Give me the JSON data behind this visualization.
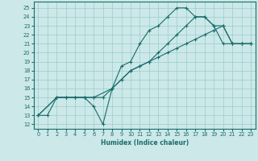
{
  "xlabel": "Humidex (Indice chaleur)",
  "bg_color": "#cce8e8",
  "grid_color": "#99cccc",
  "line_color": "#1a6b6b",
  "xlim": [
    -0.5,
    23.5
  ],
  "ylim": [
    11.5,
    25.7
  ],
  "xticks": [
    0,
    1,
    2,
    3,
    4,
    5,
    6,
    7,
    8,
    9,
    10,
    11,
    12,
    13,
    14,
    15,
    16,
    17,
    18,
    19,
    20,
    21,
    22,
    23
  ],
  "yticks": [
    12,
    13,
    14,
    15,
    16,
    17,
    18,
    19,
    20,
    21,
    22,
    23,
    24,
    25
  ],
  "lines": [
    {
      "x": [
        0,
        1,
        2,
        3,
        4,
        5,
        6,
        7,
        8,
        9,
        10,
        11,
        12,
        13,
        14,
        15,
        16,
        17,
        18,
        19,
        20,
        21,
        22,
        23
      ],
      "y": [
        13,
        13,
        15,
        15,
        15,
        15,
        14,
        12,
        16,
        18.5,
        19,
        21,
        22.5,
        23,
        24,
        25,
        25,
        24,
        24,
        23,
        21,
        21,
        21,
        21
      ]
    },
    {
      "x": [
        0,
        2,
        3,
        4,
        5,
        6,
        7,
        8,
        9,
        10,
        11,
        12,
        13,
        14,
        15,
        16,
        17,
        18,
        19,
        20,
        21,
        22,
        23
      ],
      "y": [
        13,
        15,
        15,
        15,
        15,
        15,
        15,
        16,
        17,
        18,
        18.5,
        19,
        19.5,
        20,
        20.5,
        21,
        21.5,
        22,
        22.5,
        23,
        21,
        21,
        21
      ]
    },
    {
      "x": [
        0,
        2,
        3,
        4,
        5,
        6,
        8,
        9,
        10,
        11,
        12,
        13,
        14,
        15,
        16,
        17,
        18,
        19,
        20,
        21,
        22,
        23
      ],
      "y": [
        13,
        15,
        15,
        15,
        15,
        15,
        16,
        17,
        18,
        18.5,
        19,
        20,
        21,
        22,
        23,
        24,
        24,
        23,
        23,
        21,
        21,
        21
      ]
    }
  ]
}
